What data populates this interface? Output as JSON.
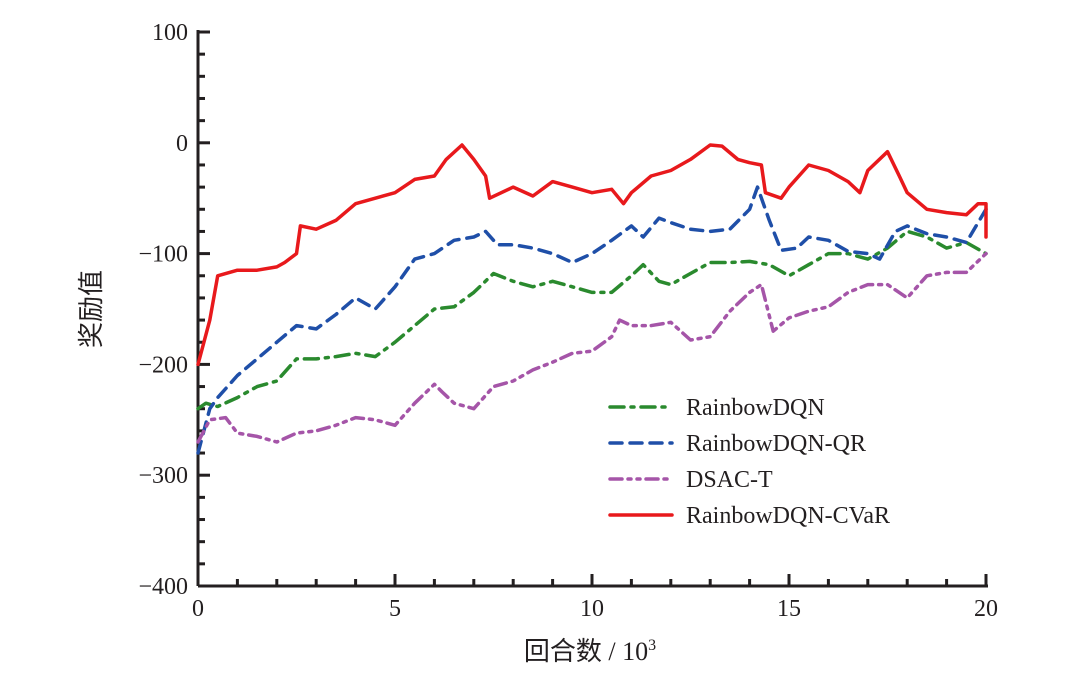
{
  "chart_data": {
    "type": "line",
    "title": "",
    "xlabel": "回合数 / 10³",
    "xlabel_main": "回合数 / 10",
    "xlabel_sup": "3",
    "ylabel": "奖励值",
    "xlim": [
      0,
      20
    ],
    "ylim": [
      -400,
      100
    ],
    "xticks": [
      0,
      5,
      10,
      15,
      20
    ],
    "xtick_labels": [
      "0",
      "5",
      "10",
      "15",
      "20"
    ],
    "yticks": [
      100,
      0,
      -100,
      -200,
      -300,
      -400
    ],
    "ytick_labels": [
      "100",
      "0",
      "−100",
      "−200",
      "−300",
      "−400"
    ],
    "grid": false,
    "legend_position": "lower-right",
    "series": [
      {
        "name": "RainbowDQN",
        "color": "#2a8a2e",
        "dash": "dashdot",
        "x": [
          0,
          0.2,
          0.5,
          1,
          1.5,
          2,
          2.5,
          3,
          3.5,
          4,
          4.5,
          5,
          5.5,
          6,
          6.5,
          7,
          7.5,
          8,
          8.5,
          9,
          9.5,
          10,
          10.5,
          11,
          11.3,
          11.7,
          12,
          12.5,
          13,
          13.5,
          14,
          14.5,
          15,
          15.5,
          16,
          16.5,
          17,
          17.5,
          18,
          18.5,
          19,
          19.5,
          20
        ],
        "y": [
          -240,
          -235,
          -238,
          -230,
          -220,
          -215,
          -195,
          -195,
          -193,
          -190,
          -193,
          -180,
          -165,
          -150,
          -148,
          -135,
          -118,
          -125,
          -130,
          -125,
          -130,
          -135,
          -135,
          -120,
          -110,
          -125,
          -128,
          -118,
          -108,
          -108,
          -107,
          -110,
          -120,
          -110,
          -100,
          -100,
          -105,
          -95,
          -80,
          -85,
          -95,
          -90,
          -100
        ]
      },
      {
        "name": "RainbowDQN-QR",
        "color": "#1f4fa8",
        "dash": "dash",
        "x": [
          0,
          0.3,
          0.5,
          1,
          1.5,
          2,
          2.5,
          3,
          3.5,
          4,
          4.5,
          5,
          5.5,
          6,
          6.5,
          7,
          7.3,
          7.6,
          8,
          8.5,
          9,
          9.5,
          10,
          10.5,
          11,
          11.3,
          11.7,
          12,
          12.5,
          13,
          13.5,
          14,
          14.2,
          14.5,
          14.8,
          15.2,
          15.5,
          16,
          16.5,
          17,
          17.3,
          17.7,
          18,
          18.5,
          19,
          19.5,
          20
        ],
        "y": [
          -280,
          -240,
          -230,
          -210,
          -195,
          -180,
          -165,
          -168,
          -155,
          -140,
          -150,
          -130,
          -105,
          -100,
          -88,
          -85,
          -80,
          -92,
          -92,
          -95,
          -100,
          -108,
          -100,
          -88,
          -75,
          -85,
          -68,
          -72,
          -78,
          -80,
          -78,
          -60,
          -40,
          -70,
          -97,
          -95,
          -85,
          -88,
          -98,
          -100,
          -105,
          -80,
          -75,
          -82,
          -85,
          -90,
          -60
        ]
      },
      {
        "name": "DSAC-T",
        "color": "#a555a8",
        "dash": "dashdotdot",
        "x": [
          0,
          0.3,
          0.7,
          1,
          1.5,
          2,
          2.5,
          3,
          3.5,
          4,
          4.5,
          5,
          5.5,
          6,
          6.2,
          6.5,
          7,
          7.5,
          8,
          8.5,
          9,
          9.5,
          10,
          10.5,
          10.7,
          11,
          11.5,
          12,
          12.5,
          13,
          13.5,
          14,
          14.3,
          14.6,
          15,
          15.5,
          16,
          16.5,
          17,
          17.5,
          18,
          18.5,
          19,
          19.5,
          20
        ],
        "y": [
          -270,
          -250,
          -248,
          -262,
          -265,
          -270,
          -262,
          -260,
          -255,
          -248,
          -250,
          -255,
          -235,
          -218,
          -225,
          -235,
          -240,
          -220,
          -215,
          -205,
          -198,
          -190,
          -188,
          -175,
          -160,
          -165,
          -165,
          -162,
          -178,
          -175,
          -152,
          -135,
          -128,
          -170,
          -158,
          -152,
          -148,
          -135,
          -128,
          -128,
          -140,
          -120,
          -117,
          -117,
          -100
        ]
      },
      {
        "name": "RainbowDQN-CVaR",
        "color": "#e8191c",
        "dash": "solid",
        "x": [
          0,
          0.3,
          0.5,
          1,
          1.5,
          2,
          2.2,
          2.5,
          2.6,
          3,
          3.5,
          4,
          4.5,
          5,
          5.5,
          6,
          6.3,
          6.7,
          7,
          7.3,
          7.4,
          8,
          8.5,
          9,
          9.5,
          10,
          10.5,
          10.8,
          11,
          11.5,
          12,
          12.5,
          13,
          13.3,
          13.7,
          14,
          14.3,
          14.4,
          14.8,
          15,
          15.5,
          16,
          16.5,
          16.8,
          17,
          17.5,
          17.8,
          18,
          18.5,
          19,
          19.5,
          19.8,
          20,
          20
        ],
        "y": [
          -200,
          -160,
          -120,
          -115,
          -115,
          -112,
          -108,
          -100,
          -75,
          -78,
          -70,
          -55,
          -50,
          -45,
          -33,
          -30,
          -15,
          -2,
          -15,
          -30,
          -50,
          -40,
          -48,
          -35,
          -40,
          -45,
          -42,
          -55,
          -45,
          -30,
          -25,
          -15,
          -2,
          -3,
          -15,
          -18,
          -20,
          -45,
          -50,
          -40,
          -20,
          -25,
          -35,
          -45,
          -25,
          -8,
          -30,
          -45,
          -60,
          -63,
          -65,
          -55,
          -55,
          -85
        ]
      }
    ]
  }
}
